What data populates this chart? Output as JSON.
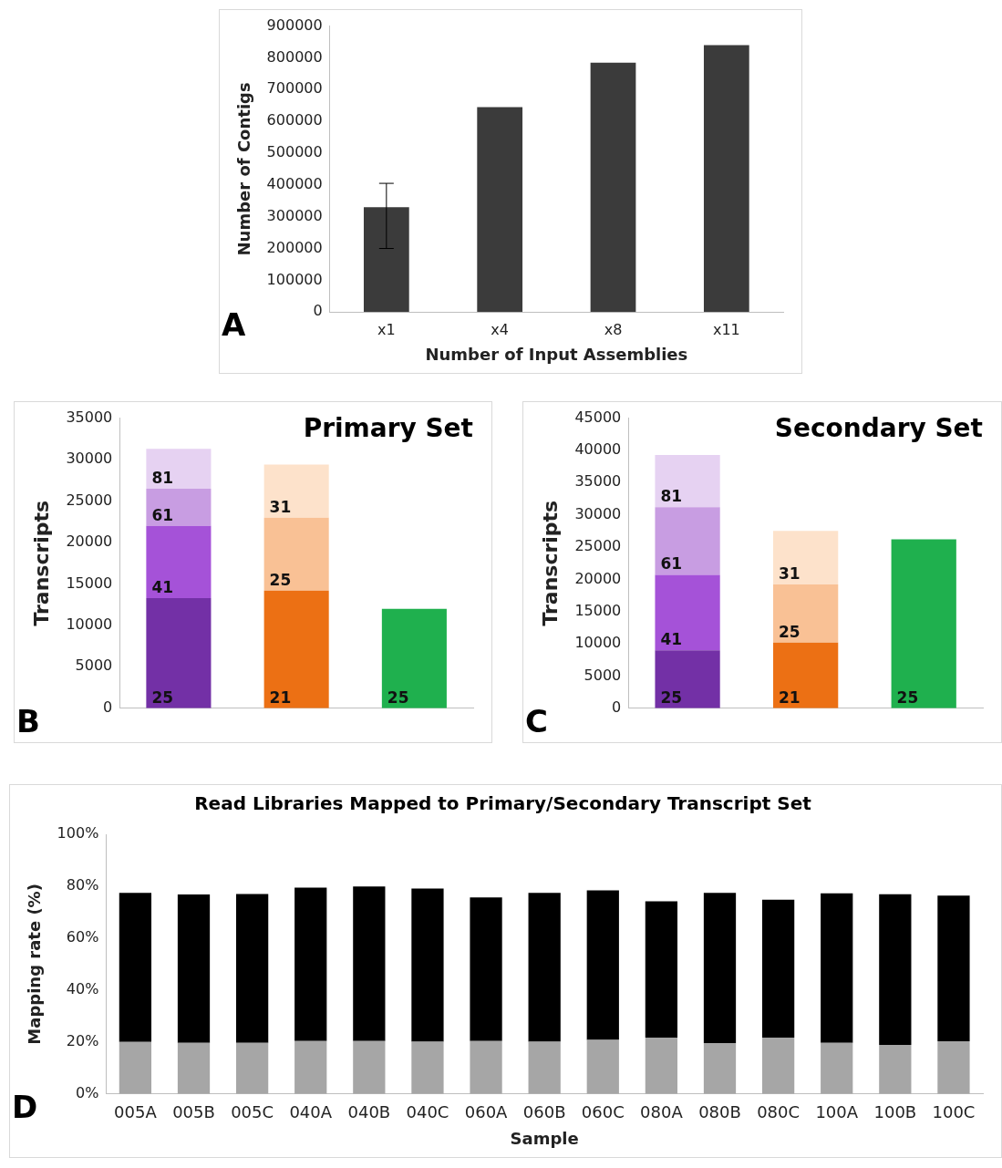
{
  "chart_data": [
    {
      "type": "bar",
      "xlabel": "Number of Input Assemblies",
      "ylabel": "Number of Contigs",
      "categories": [
        "x1",
        "x4",
        "x8",
        "x11"
      ],
      "values": [
        330000,
        645000,
        785000,
        840000
      ],
      "errors": [
        [
          200000,
          405000
        ],
        null,
        null,
        null
      ],
      "color": "#3b3b3b",
      "ylim": [
        0,
        900000
      ],
      "yticks": [
        0,
        100000,
        200000,
        300000,
        400000,
        500000,
        600000,
        700000,
        800000,
        900000
      ],
      "annotations": [
        "A"
      ]
    },
    {
      "type": "bar",
      "title": "Primary Set",
      "ylabel": "Transcripts",
      "categories": [
        null,
        null,
        null
      ],
      "stacked": true,
      "series": [
        {
          "values": [
            13300,
            14200,
            12000
          ],
          "colors": [
            "#7330a6",
            "#ec7014",
            "#1fb04e"
          ]
        },
        {
          "values": [
            8700,
            8800,
            null
          ],
          "colors": [
            "#a552d8",
            "#f9c195",
            "#1fb04e"
          ]
        },
        {
          "values": [
            4500,
            6400,
            null
          ],
          "colors": [
            "#c89de2",
            "#fde2cb",
            "#1fb04e"
          ]
        },
        {
          "values": [
            4800,
            null,
            null
          ],
          "colors": [
            "#e6d2f2",
            "#fde2cb",
            "#1fb04e"
          ]
        }
      ],
      "ylim": [
        0,
        35000
      ],
      "yticks": [
        0,
        5000,
        10000,
        15000,
        20000,
        25000,
        30000,
        35000
      ],
      "annotations": [
        "B",
        {
          "text": "25",
          "y": 0
        },
        {
          "text": "21",
          "y": 0
        },
        {
          "text": "25",
          "y": 0
        },
        {
          "text": "41",
          "y": 13300
        },
        {
          "text": "25",
          "y": 14200
        },
        {
          "text": "61",
          "y": 22000
        },
        {
          "text": "31",
          "y": 23000
        },
        {
          "text": "81",
          "y": 26500
        }
      ]
    },
    {
      "type": "bar",
      "title": "Secondary Set",
      "ylabel": "Transcripts",
      "categories": [
        null,
        null,
        null
      ],
      "stacked": true,
      "series": [
        {
          "values": [
            9000,
            10200,
            26200
          ],
          "colors": [
            "#7330a6",
            "#ec7014",
            "#1fb04e"
          ]
        },
        {
          "values": [
            11700,
            9000,
            null
          ],
          "colors": [
            "#a552d8",
            "#f9c195",
            "#1fb04e"
          ]
        },
        {
          "values": [
            10500,
            8300,
            null
          ],
          "colors": [
            "#c89de2",
            "#fde2cb",
            "#1fb04e"
          ]
        },
        {
          "values": [
            8100,
            null,
            null
          ],
          "colors": [
            "#e6d2f2",
            "#fde2cb",
            "#1fb04e"
          ]
        }
      ],
      "ylim": [
        0,
        45000
      ],
      "yticks": [
        0,
        5000,
        10000,
        15000,
        20000,
        25000,
        30000,
        35000,
        40000,
        45000
      ],
      "annotations": [
        "C",
        {
          "text": "25",
          "y": 0
        },
        {
          "text": "21",
          "y": 0
        },
        {
          "text": "25",
          "y": 0
        },
        {
          "text": "41",
          "y": 9000
        },
        {
          "text": "25",
          "y": 10200
        },
        {
          "text": "61",
          "y": 20700
        },
        {
          "text": "31",
          "y": 19200
        },
        {
          "text": "81",
          "y": 31200
        }
      ]
    },
    {
      "type": "bar",
      "title": "Read Libraries Mapped to Primary/Secondary Transcript Set",
      "xlabel": "Sample",
      "ylabel": "Mapping rate (%)",
      "categories": [
        "005A",
        "005B",
        "005C",
        "040A",
        "040B",
        "040C",
        "060A",
        "060B",
        "060C",
        "080A",
        "080B",
        "080C",
        "100A",
        "100B",
        "100C"
      ],
      "stacked": true,
      "series": [
        {
          "color": "#a6a6a6",
          "values": [
            20.0,
            19.7,
            19.7,
            20.4,
            20.4,
            20.1,
            20.4,
            20.1,
            20.8,
            21.7,
            19.6,
            21.7,
            19.7,
            18.9,
            20.3
          ]
        },
        {
          "color": "#000000",
          "values": [
            57.4,
            57.1,
            57.3,
            59.1,
            59.5,
            59.0,
            55.3,
            57.3,
            57.6,
            52.5,
            57.8,
            53.1,
            57.6,
            58.0,
            56.1
          ]
        }
      ],
      "ylim": [
        0,
        100
      ],
      "yticks": [
        {
          "value": 0,
          "label": "0%"
        },
        {
          "value": 20,
          "label": "20%"
        },
        {
          "value": 40,
          "label": "40%"
        },
        {
          "value": 60,
          "label": "60%"
        },
        {
          "value": 80,
          "label": "80%"
        },
        {
          "value": 100,
          "label": "100%"
        }
      ],
      "annotations": [
        "D"
      ]
    }
  ]
}
